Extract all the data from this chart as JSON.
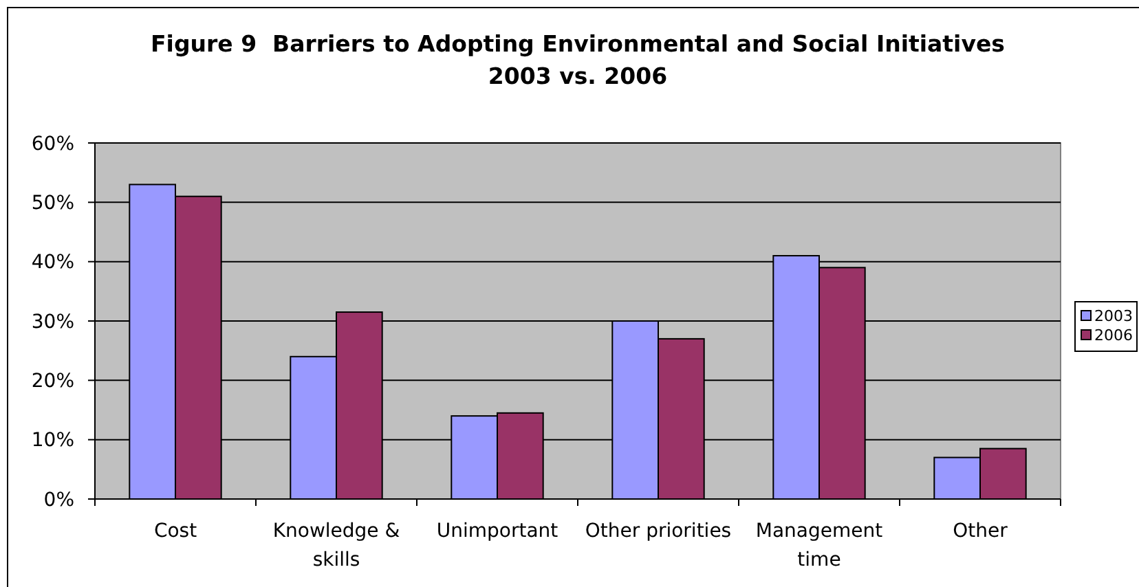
{
  "chart_data": {
    "type": "bar",
    "title": "Figure 9  Barriers to Adopting Environmental and Social Initiatives",
    "subtitle": "2003 vs. 2006",
    "categories": [
      "Cost",
      "Knowledge & skills",
      "Unimportant",
      "Other priorities",
      "Management time",
      "Other"
    ],
    "series": [
      {
        "name": "2003",
        "color": "#9999ff",
        "values": [
          53,
          24,
          14,
          30,
          41,
          7
        ]
      },
      {
        "name": "2006",
        "color": "#993366",
        "values": [
          51,
          31.5,
          14.5,
          27,
          39,
          8.5
        ]
      }
    ],
    "ylim": [
      0,
      60
    ],
    "yticks": [
      {
        "value": 0,
        "label": "0%"
      },
      {
        "value": 10,
        "label": "10%"
      },
      {
        "value": 20,
        "label": "20%"
      },
      {
        "value": 30,
        "label": "30%"
      },
      {
        "value": 40,
        "label": "40%"
      },
      {
        "value": 50,
        "label": "50%"
      },
      {
        "value": 60,
        "label": "60%"
      }
    ],
    "grid": "y",
    "legend": "right"
  }
}
